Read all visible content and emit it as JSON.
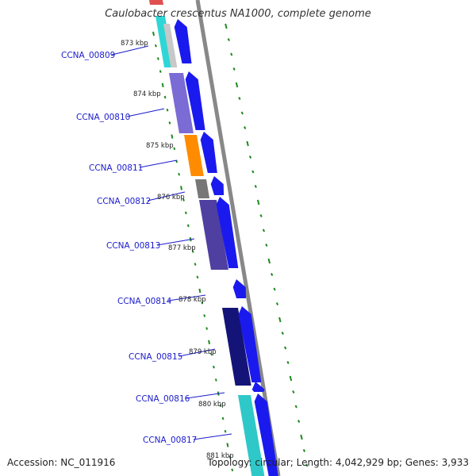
{
  "title": "Caulobacter crescentus NA1000, complete genome",
  "accession": "Accession: NC_011916",
  "summary": "Topology: circular; Length: 4,042,929 bp; Genes: 3,933",
  "colors": {
    "forward_arrow": "#1a1aee",
    "backbone": "#888888",
    "label_line": "#1a1acc",
    "tick": "#1f8a1f"
  },
  "kbp_labels": [
    "873 kbp",
    "874 kbp",
    "875 kbp",
    "876 kbp",
    "877 kbp",
    "878 kbp",
    "879 kbp",
    "880 kbp",
    "881 kbp"
  ],
  "genes": [
    {
      "name": "CCNA_00809",
      "color": "#2fd6d6"
    },
    {
      "name": "CCNA_00810",
      "color": "#7b6bd4"
    },
    {
      "name": "CCNA_00811",
      "color": "#ff8c00"
    },
    {
      "name": "CCNA_00812",
      "color": "#777777"
    },
    {
      "name": "CCNA_00813",
      "color": "#4f3fa0"
    },
    {
      "name": "CCNA_00814",
      "color": "#1a1aee"
    },
    {
      "name": "CCNA_00815",
      "color": "#141478"
    },
    {
      "name": "CCNA_00816",
      "color": "#1a1aee"
    },
    {
      "name": "CCNA_00817",
      "color": "#2fc8c8"
    }
  ]
}
